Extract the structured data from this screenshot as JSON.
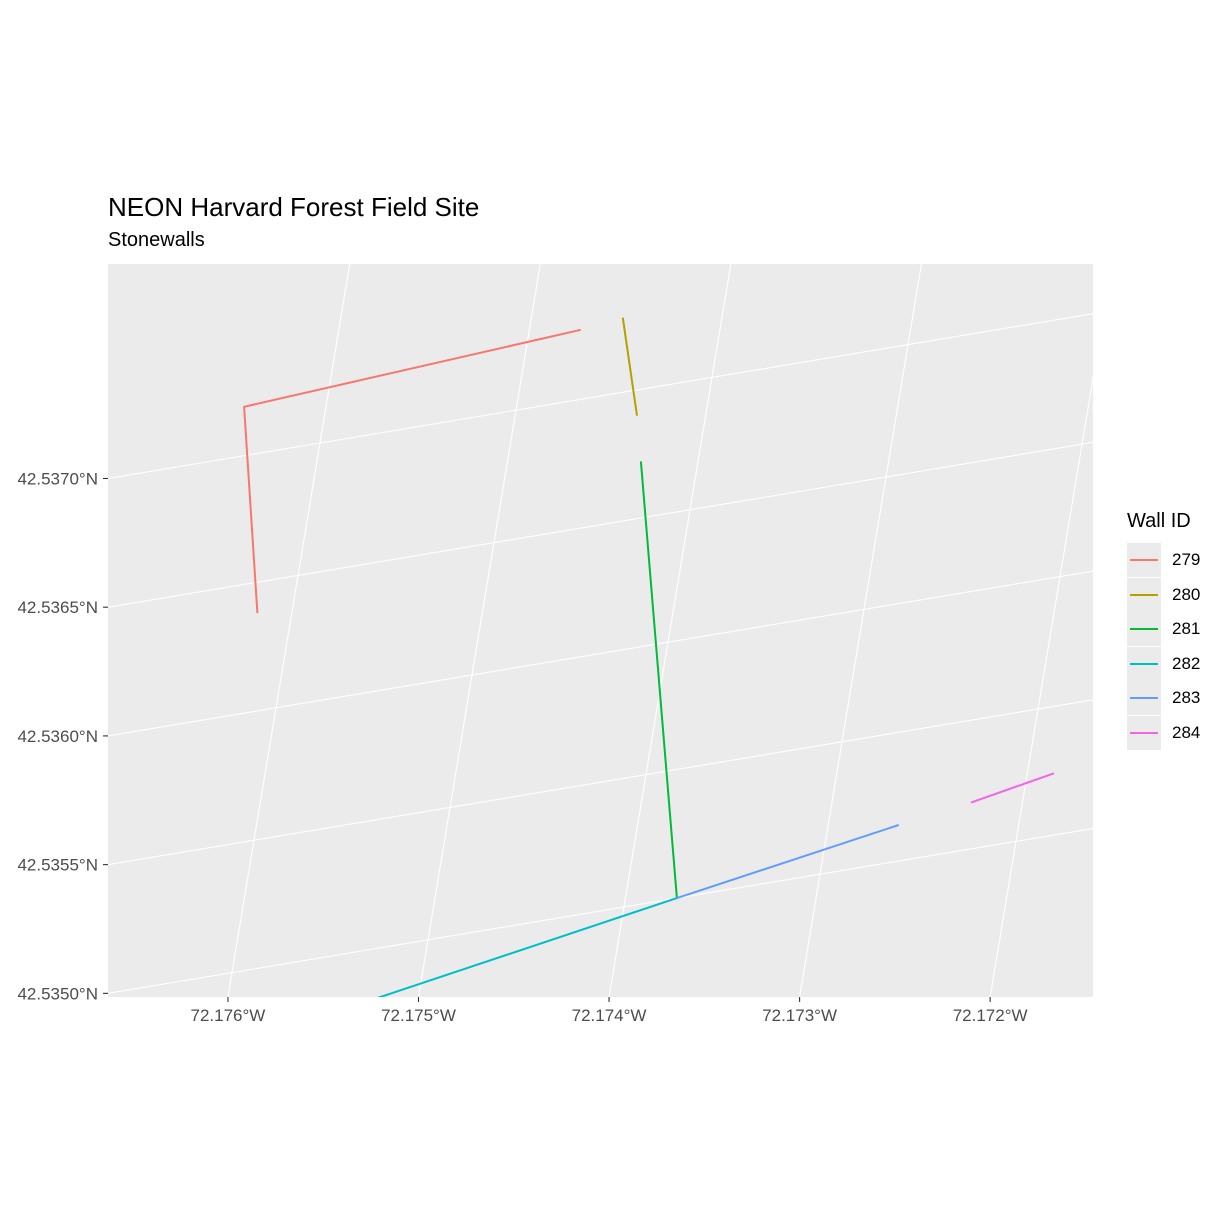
{
  "plot": {
    "title": "NEON Harvard Forest Field Site",
    "subtitle": "Stonewalls",
    "panel_background": "#ebebeb",
    "grid_color": "#ffffff"
  },
  "legend": {
    "title": "Wall ID",
    "items": [
      {
        "label": "279",
        "color": "#F8766D"
      },
      {
        "label": "280",
        "color": "#B79F00"
      },
      {
        "label": "281",
        "color": "#00BA38"
      },
      {
        "label": "282",
        "color": "#00BFC4"
      },
      {
        "label": "283",
        "color": "#619CFF"
      },
      {
        "label": "284",
        "color": "#F564E3"
      }
    ]
  },
  "chart_data": {
    "type": "line",
    "title": "NEON Harvard Forest Field Site",
    "subtitle": "Stonewalls",
    "legend_title": "Wall ID",
    "legend_position": "right",
    "grid": true,
    "x_ticks": [
      "72.176°W",
      "72.175°W",
      "72.174°W",
      "72.173°W",
      "72.172°W"
    ],
    "y_ticks": [
      "42.5350°N",
      "42.5355°N",
      "42.5360°N",
      "42.5365°N",
      "42.5370°N"
    ],
    "x_tick_values": [
      -72.176,
      -72.175,
      -72.174,
      -72.173,
      -72.172
    ],
    "y_tick_values": [
      42.535,
      42.5355,
      42.536,
      42.5365,
      42.537
    ],
    "xlim": [
      -72.1767,
      -72.1716
    ],
    "ylim": [
      42.5346,
      42.5374
    ],
    "series": [
      {
        "name": "279",
        "color": "#F8766D",
        "points": [
          [
            -72.17473,
            42.53727
          ],
          [
            -72.17643,
            42.53719
          ],
          [
            -72.17618,
            42.53638
          ]
        ]
      },
      {
        "name": "280",
        "color": "#B79F00",
        "points": [
          [
            -72.17452,
            42.53729
          ],
          [
            -72.17436,
            42.5369
          ]
        ]
      },
      {
        "name": "281",
        "color": "#00BA38",
        "points": [
          [
            -72.1743,
            42.53672
          ],
          [
            -72.17373,
            42.535
          ]
        ]
      },
      {
        "name": "282",
        "color": "#00BFC4",
        "points": [
          [
            -72.17542,
            42.53478
          ],
          [
            -72.17373,
            42.535
          ]
        ]
      },
      {
        "name": "283",
        "color": "#619CFF",
        "points": [
          [
            -72.17373,
            42.535
          ],
          [
            -72.17263,
            42.53514
          ]
        ]
      },
      {
        "name": "284",
        "color": "#F564E3",
        "points": [
          [
            -72.17227,
            42.53518
          ],
          [
            -72.17186,
            42.53524
          ]
        ]
      }
    ]
  }
}
